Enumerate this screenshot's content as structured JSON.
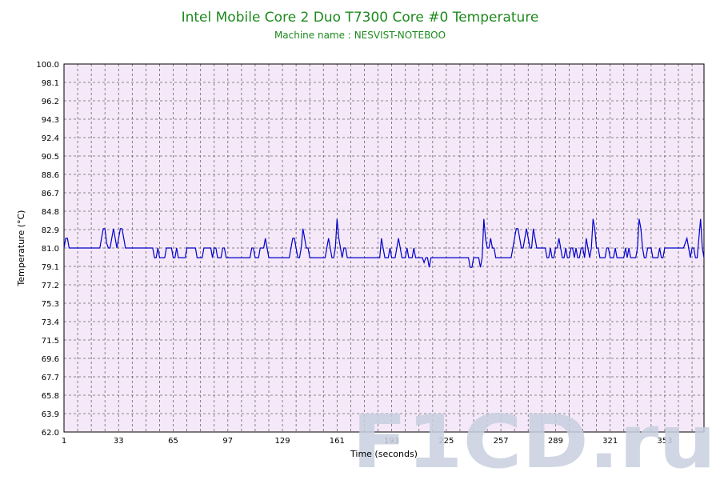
{
  "chart_data": {
    "type": "line",
    "title": "Intel Mobile Core 2 Duo T7300 Core #0 Temperature",
    "subtitle": "Machine name : NESVIST-NOTEBOO",
    "xlabel": "Time (seconds)",
    "ylabel": "Temperature (°C)",
    "xlim": [
      1,
      376
    ],
    "ylim": [
      62.0,
      100.0
    ],
    "yticks": [
      "62.0",
      "63.9",
      "65.8",
      "67.7",
      "69.6",
      "71.5",
      "73.4",
      "75.3",
      "77.2",
      "79.1",
      "81.0",
      "82.9",
      "84.8",
      "86.7",
      "88.6",
      "90.5",
      "92.4",
      "94.3",
      "96.2",
      "98.1",
      "100.0"
    ],
    "xticks": [
      1,
      33,
      65,
      97,
      129,
      161,
      193,
      225,
      257,
      289,
      321,
      353
    ],
    "grid": true,
    "line_color": "#0000cc",
    "plot_background": "#f5e8f8",
    "series": [
      {
        "name": "",
        "points": [
          [
            1,
            81.0
          ],
          [
            2,
            82.0
          ],
          [
            3,
            82.0
          ],
          [
            4,
            81.0
          ],
          [
            10,
            81.0
          ],
          [
            22,
            81.0
          ],
          [
            23,
            82.0
          ],
          [
            24,
            83.0
          ],
          [
            25,
            83.0
          ],
          [
            26,
            81.5
          ],
          [
            27,
            81.0
          ],
          [
            28,
            81.0
          ],
          [
            29,
            82.0
          ],
          [
            30,
            83.0
          ],
          [
            31,
            82.0
          ],
          [
            32,
            81.0
          ],
          [
            33,
            82.0
          ],
          [
            34,
            83.0
          ],
          [
            35,
            83.0
          ],
          [
            36,
            82.0
          ],
          [
            37,
            81.0
          ],
          [
            45,
            81.0
          ],
          [
            50,
            81.0
          ],
          [
            53,
            81.0
          ],
          [
            54,
            80.0
          ],
          [
            55,
            80.0
          ],
          [
            56,
            81.0
          ],
          [
            57,
            80.0
          ],
          [
            60,
            80.0
          ],
          [
            61,
            81.0
          ],
          [
            64,
            81.0
          ],
          [
            65,
            80.0
          ],
          [
            66,
            80.0
          ],
          [
            67,
            81.0
          ],
          [
            68,
            80.0
          ],
          [
            72,
            80.0
          ],
          [
            73,
            81.0
          ],
          [
            78,
            81.0
          ],
          [
            79,
            80.0
          ],
          [
            82,
            80.0
          ],
          [
            83,
            81.0
          ],
          [
            87,
            81.0
          ],
          [
            88,
            80.0
          ],
          [
            89,
            81.0
          ],
          [
            90,
            81.0
          ],
          [
            91,
            80.0
          ],
          [
            93,
            80.0
          ],
          [
            94,
            81.0
          ],
          [
            95,
            81.0
          ],
          [
            96,
            80.0
          ],
          [
            97,
            80.0
          ],
          [
            110,
            80.0
          ],
          [
            111,
            81.0
          ],
          [
            112,
            81.0
          ],
          [
            113,
            80.0
          ],
          [
            115,
            80.0
          ],
          [
            116,
            81.0
          ],
          [
            118,
            81.0
          ],
          [
            119,
            82.0
          ],
          [
            120,
            81.0
          ],
          [
            121,
            80.0
          ],
          [
            129,
            80.0
          ],
          [
            130,
            80.0
          ],
          [
            133,
            80.0
          ],
          [
            134,
            81.0
          ],
          [
            135,
            82.0
          ],
          [
            136,
            82.0
          ],
          [
            137,
            81.0
          ],
          [
            138,
            80.0
          ],
          [
            139,
            80.0
          ],
          [
            140,
            81.0
          ],
          [
            141,
            83.0
          ],
          [
            142,
            82.0
          ],
          [
            143,
            81.0
          ],
          [
            144,
            81.0
          ],
          [
            145,
            80.0
          ],
          [
            154,
            80.0
          ],
          [
            155,
            81.0
          ],
          [
            156,
            82.0
          ],
          [
            157,
            81.0
          ],
          [
            158,
            80.0
          ],
          [
            159,
            80.0
          ],
          [
            160,
            81.0
          ],
          [
            161,
            84.0
          ],
          [
            162,
            82.0
          ],
          [
            163,
            81.0
          ],
          [
            164,
            80.0
          ],
          [
            165,
            81.0
          ],
          [
            166,
            81.0
          ],
          [
            167,
            80.0
          ],
          [
            169,
            80.0
          ],
          [
            182,
            80.0
          ],
          [
            186,
            80.0
          ],
          [
            187,
            82.0
          ],
          [
            188,
            81.0
          ],
          [
            189,
            80.0
          ],
          [
            191,
            80.0
          ],
          [
            192,
            81.0
          ],
          [
            193,
            80.0
          ],
          [
            195,
            80.0
          ],
          [
            196,
            81.0
          ],
          [
            197,
            82.0
          ],
          [
            198,
            81.0
          ],
          [
            199,
            80.0
          ],
          [
            201,
            80.0
          ],
          [
            202,
            81.0
          ],
          [
            203,
            80.0
          ],
          [
            205,
            80.0
          ],
          [
            206,
            81.0
          ],
          [
            207,
            80.0
          ],
          [
            211,
            80.0
          ],
          [
            212,
            79.5
          ],
          [
            213,
            80.0
          ],
          [
            214,
            80.0
          ],
          [
            215,
            79.0
          ],
          [
            216,
            80.0
          ],
          [
            220,
            80.0
          ],
          [
            225,
            80.0
          ],
          [
            231,
            80.0
          ],
          [
            238,
            80.0
          ],
          [
            239,
            79.0
          ],
          [
            240,
            79.0
          ],
          [
            241,
            80.0
          ],
          [
            244,
            80.0
          ],
          [
            245,
            79.0
          ],
          [
            246,
            80.0
          ],
          [
            247,
            84.0
          ],
          [
            248,
            82.0
          ],
          [
            249,
            81.0
          ],
          [
            250,
            81.0
          ],
          [
            251,
            82.0
          ],
          [
            252,
            81.0
          ],
          [
            253,
            81.0
          ],
          [
            254,
            80.0
          ],
          [
            255,
            80.0
          ],
          [
            256,
            80.0
          ],
          [
            257,
            80.0
          ],
          [
            258,
            80.0
          ],
          [
            263,
            80.0
          ],
          [
            264,
            81.0
          ],
          [
            265,
            82.0
          ],
          [
            266,
            83.0
          ],
          [
            267,
            83.0
          ],
          [
            268,
            82.0
          ],
          [
            269,
            81.0
          ],
          [
            270,
            81.0
          ],
          [
            271,
            82.0
          ],
          [
            272,
            83.0
          ],
          [
            273,
            82.0
          ],
          [
            274,
            81.0
          ],
          [
            275,
            81.0
          ],
          [
            276,
            83.0
          ],
          [
            277,
            82.0
          ],
          [
            278,
            81.0
          ],
          [
            283,
            81.0
          ],
          [
            284,
            80.0
          ],
          [
            285,
            80.0
          ],
          [
            286,
            81.0
          ],
          [
            287,
            80.0
          ],
          [
            288,
            80.0
          ],
          [
            289,
            81.0
          ],
          [
            290,
            81.0
          ],
          [
            291,
            82.0
          ],
          [
            292,
            81.0
          ],
          [
            293,
            80.0
          ],
          [
            294,
            80.0
          ],
          [
            295,
            81.0
          ],
          [
            296,
            80.0
          ],
          [
            297,
            80.0
          ],
          [
            298,
            81.0
          ],
          [
            299,
            81.0
          ],
          [
            300,
            80.0
          ],
          [
            301,
            81.0
          ],
          [
            302,
            80.0
          ],
          [
            303,
            80.0
          ],
          [
            304,
            81.0
          ],
          [
            305,
            81.0
          ],
          [
            306,
            80.0
          ],
          [
            307,
            82.0
          ],
          [
            308,
            81.0
          ],
          [
            309,
            80.0
          ],
          [
            310,
            81.0
          ],
          [
            311,
            84.0
          ],
          [
            312,
            83.0
          ],
          [
            313,
            81.0
          ],
          [
            314,
            81.0
          ],
          [
            315,
            80.0
          ],
          [
            318,
            80.0
          ],
          [
            319,
            81.0
          ],
          [
            320,
            81.0
          ],
          [
            321,
            80.0
          ],
          [
            323,
            80.0
          ],
          [
            324,
            81.0
          ],
          [
            325,
            80.0
          ],
          [
            329,
            80.0
          ],
          [
            330,
            81.0
          ],
          [
            331,
            80.0
          ],
          [
            332,
            81.0
          ],
          [
            333,
            80.0
          ],
          [
            336,
            80.0
          ],
          [
            337,
            81.0
          ],
          [
            338,
            84.0
          ],
          [
            339,
            83.0
          ],
          [
            340,
            81.0
          ],
          [
            341,
            80.0
          ],
          [
            342,
            80.0
          ],
          [
            343,
            81.0
          ],
          [
            344,
            81.0
          ],
          [
            345,
            81.0
          ],
          [
            346,
            80.0
          ],
          [
            349,
            80.0
          ],
          [
            350,
            81.0
          ],
          [
            351,
            80.0
          ],
          [
            352,
            80.0
          ],
          [
            353,
            81.0
          ],
          [
            356,
            81.0
          ],
          [
            360,
            81.0
          ],
          [
            362,
            81.0
          ],
          [
            364,
            81.0
          ],
          [
            366,
            82.0
          ],
          [
            368,
            80.0
          ],
          [
            369,
            81.0
          ],
          [
            370,
            81.0
          ],
          [
            371,
            80.0
          ],
          [
            372,
            80.0
          ],
          [
            374,
            84.0
          ],
          [
            375,
            81.0
          ],
          [
            376,
            80.0
          ]
        ]
      }
    ]
  },
  "watermark": {
    "text": "F1CD.ru",
    "color": "#c8d0e0"
  }
}
